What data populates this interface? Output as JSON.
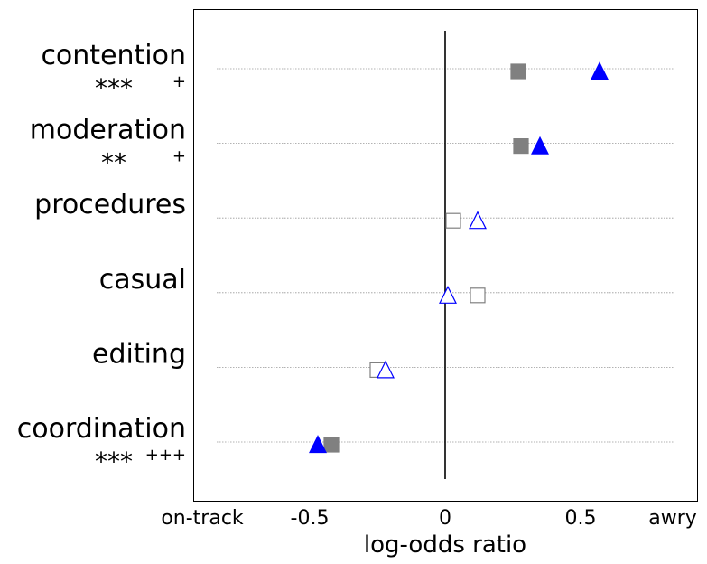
{
  "chart_data": {
    "type": "scatter",
    "orientation": "horizontal",
    "xlabel": "log-odds ratio",
    "xlim": [
      -0.95,
      0.95
    ],
    "xticks": [
      {
        "value": -0.9,
        "label": "on-track"
      },
      {
        "value": -0.5,
        "label": "-0.5"
      },
      {
        "value": 0,
        "label": "0"
      },
      {
        "value": 0.5,
        "label": "0.5"
      },
      {
        "value": 0.9,
        "label": "awry"
      }
    ],
    "grid": "horizontal dotted per category",
    "reference_line": 0,
    "colors": {
      "square": "#808080",
      "triangle": "#0000ff"
    },
    "categories": [
      {
        "label": "contention",
        "sig_square": "***",
        "sig_triangle": "+",
        "square": {
          "value": 0.27,
          "filled": true
        },
        "triangle": {
          "value": 0.57,
          "filled": true
        }
      },
      {
        "label": "moderation",
        "sig_square": "**",
        "sig_triangle": "+",
        "square": {
          "value": 0.28,
          "filled": true
        },
        "triangle": {
          "value": 0.35,
          "filled": true
        }
      },
      {
        "label": "procedures",
        "sig_square": "",
        "sig_triangle": "",
        "square": {
          "value": 0.03,
          "filled": false
        },
        "triangle": {
          "value": 0.12,
          "filled": false
        }
      },
      {
        "label": "casual",
        "sig_square": "",
        "sig_triangle": "",
        "square": {
          "value": 0.12,
          "filled": false
        },
        "triangle": {
          "value": 0.01,
          "filled": false
        }
      },
      {
        "label": "editing",
        "sig_square": "",
        "sig_triangle": "",
        "square": {
          "value": -0.25,
          "filled": false
        },
        "triangle": {
          "value": -0.22,
          "filled": false
        }
      },
      {
        "label": "coordination",
        "sig_square": "***",
        "sig_triangle": "+++",
        "square": {
          "value": -0.42,
          "filled": true
        },
        "triangle": {
          "value": -0.47,
          "filled": true
        }
      }
    ]
  }
}
